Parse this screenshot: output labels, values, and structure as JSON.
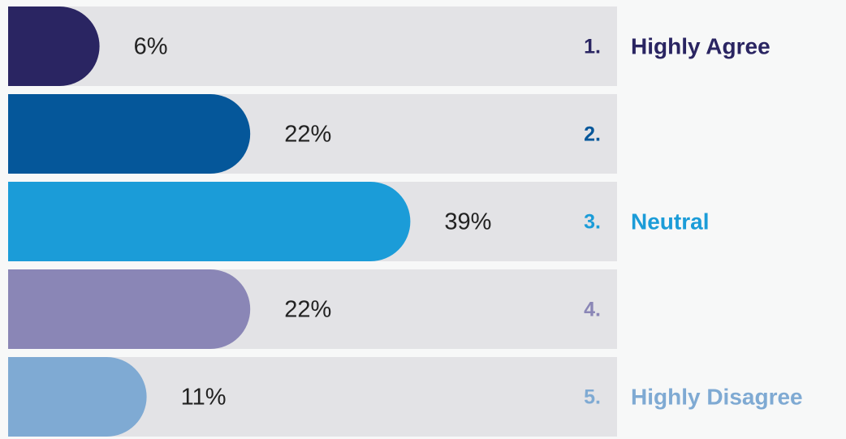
{
  "chart_data": {
    "type": "bar",
    "numbers": [
      "1.",
      "2.",
      "3.",
      "4.",
      "5."
    ],
    "categories": [
      "Highly Agree",
      null,
      "Neutral",
      null,
      "Highly Disagree"
    ],
    "values": [
      6,
      22,
      39,
      22,
      11
    ],
    "value_labels": [
      "6%",
      "22%",
      "39%",
      "22%",
      "11%"
    ],
    "colors": [
      "#2a2562",
      "#05579a",
      "#1b9cd8",
      "#8a86b6",
      "#7faad3"
    ]
  }
}
